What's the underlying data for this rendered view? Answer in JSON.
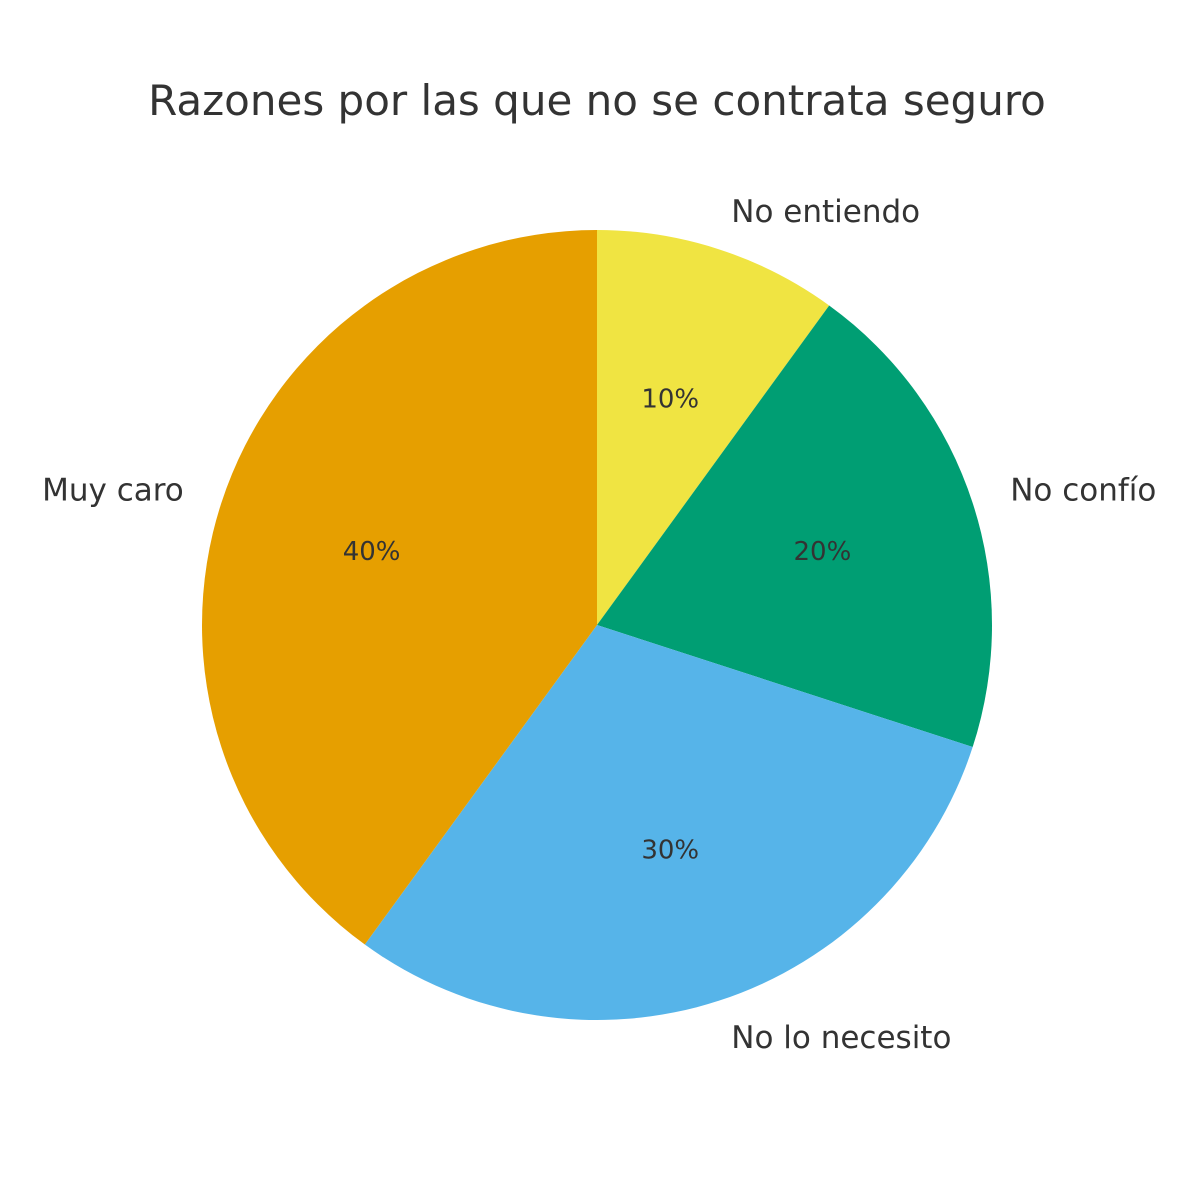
{
  "chart_data": {
    "type": "pie",
    "title": "Razones por las que no se contrata seguro",
    "start": "top",
    "direction": "clockwise",
    "slices": [
      {
        "label": "No entiendo",
        "value": 10,
        "display": "10%",
        "color": "#F0E442"
      },
      {
        "label": "No confío",
        "value": 20,
        "display": "20%",
        "color": "#009E73"
      },
      {
        "label": "No lo necesito",
        "value": 30,
        "display": "30%",
        "color": "#56B4E9"
      },
      {
        "label": "Muy caro",
        "value": 40,
        "display": "40%",
        "color": "#E69F00"
      }
    ]
  }
}
